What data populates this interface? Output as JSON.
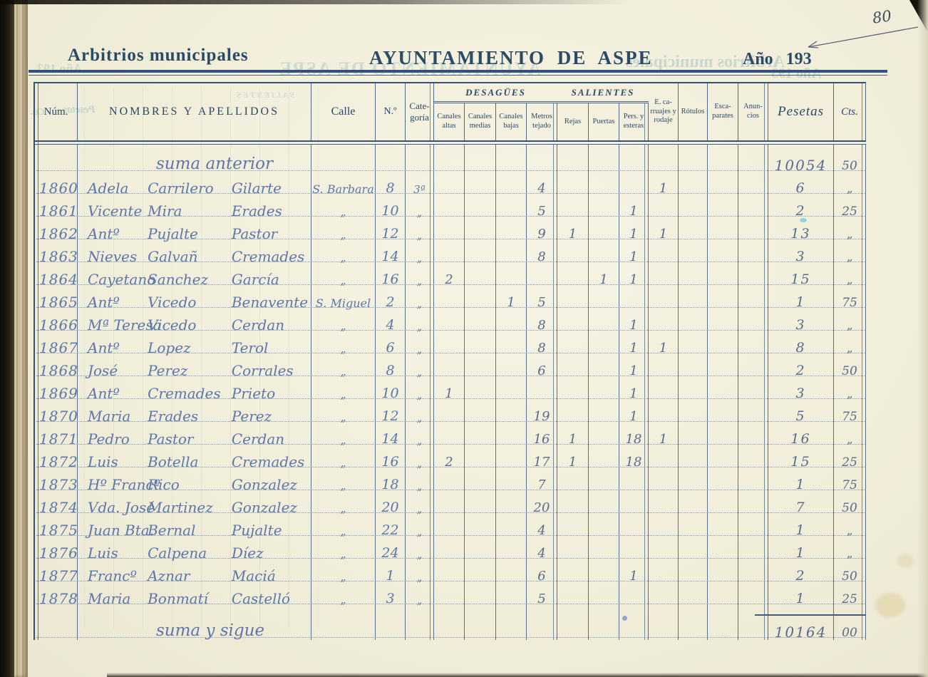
{
  "page": {
    "number": "80"
  },
  "header": {
    "left_title": "Arbitrios municipales",
    "center_title": "AYUNTAMIENTO DE ASPE",
    "year_label": "Año 193"
  },
  "table": {
    "cols": {
      "num": "Núm.",
      "names": "NOMBRES Y APELLIDOS",
      "calle": "Calle",
      "nro": "N.º",
      "cat": "Cate-goría",
      "desagues": "DESAGÜES",
      "c_altas": "Canales altas",
      "c_medias": "Canales medias",
      "c_bajas": "Canales bajas",
      "metros": "Metros tejado",
      "salientes": "SALIENTES",
      "rejas": "Rejas",
      "puertas": "Puertas",
      "pers": "Pers. y esteras",
      "ecarr": "E. ca-rruajes y rodaje",
      "rotulos": "Rótulos",
      "escaparates": "Esca-parates",
      "anuncios": "Anun-cios",
      "pesetas": "Pesetas",
      "cts": "Cts."
    },
    "rows": [
      {
        "note": "suma anterior",
        "pts": "10054",
        "cts": "50"
      },
      {
        "num": "1860",
        "n": "Adela",
        "a1": "Carrilero",
        "a2": "Gilarte",
        "calle": "S. Barbara",
        "casa": "8",
        "cat": "3ª",
        "mt": "4",
        "ec": "1",
        "pts": "6",
        "cts": "„"
      },
      {
        "num": "1861",
        "n": "Vicente",
        "a1": "Mira",
        "a2": "Erades",
        "calle": "„",
        "casa": "10",
        "cat": "„",
        "mt": "5",
        "pe": "1",
        "pts": "2",
        "cts": "25"
      },
      {
        "num": "1862",
        "n": "Antº",
        "a1": "Pujalte",
        "a2": "Pastor",
        "calle": "„",
        "casa": "12",
        "cat": "„",
        "mt": "9",
        "re": "1",
        "pe": "1",
        "ec": "1",
        "pts": "13",
        "cts": "„"
      },
      {
        "num": "1863",
        "n": "Nieves",
        "a1": "Galvañ",
        "a2": "Cremades",
        "calle": "„",
        "casa": "14",
        "cat": "„",
        "mt": "8",
        "pe": "1",
        "pts": "3",
        "cts": "„"
      },
      {
        "num": "1864",
        "n": "Cayetano",
        "a1": "Sanchez",
        "a2": "García",
        "calle": "„",
        "casa": "16",
        "cat": "„",
        "ca": "2",
        "pu": "1",
        "pe": "1",
        "pts": "15",
        "cts": "„"
      },
      {
        "num": "1865",
        "n": "Antº",
        "a1": "Vicedo",
        "a2": "Benavente",
        "calle": "S. Miguel",
        "casa": "2",
        "cat": "„",
        "cb": "1",
        "mt": "5",
        "pts": "1",
        "cts": "75"
      },
      {
        "num": "1866",
        "n": "Mª Teresa",
        "a1": "Vicedo",
        "a2": "Cerdan",
        "calle": "„",
        "casa": "4",
        "cat": "„",
        "mt": "8",
        "pe": "1",
        "pts": "3",
        "cts": "„"
      },
      {
        "num": "1867",
        "n": "Antº",
        "a1": "Lopez",
        "a2": "Terol",
        "calle": "„",
        "casa": "6",
        "cat": "„",
        "mt": "8",
        "pe": "1",
        "ec": "1",
        "pts": "8",
        "cts": "„"
      },
      {
        "num": "1868",
        "n": "José",
        "a1": "Perez",
        "a2": "Corrales",
        "calle": "„",
        "casa": "8",
        "cat": "„",
        "mt": "6",
        "pe": "1",
        "pts": "2",
        "cts": "50"
      },
      {
        "num": "1869",
        "n": "Antº",
        "a1": "Cremades",
        "a2": "Prieto",
        "calle": "„",
        "casa": "10",
        "cat": "„",
        "ca": "1",
        "pe": "1",
        "pts": "3",
        "cts": "„"
      },
      {
        "num": "1870",
        "n": "Maria",
        "a1": "Erades",
        "a2": "Perez",
        "calle": "„",
        "casa": "12",
        "cat": "„",
        "mt": "19",
        "pe": "1",
        "pts": "5",
        "cts": "75"
      },
      {
        "num": "1871",
        "n": "Pedro",
        "a1": "Pastor",
        "a2": "Cerdan",
        "calle": "„",
        "casa": "14",
        "cat": "„",
        "mt": "16",
        "re": "1",
        "pe": "18",
        "ec": "1",
        "pts": "16",
        "cts": "„"
      },
      {
        "num": "1872",
        "n": "Luis",
        "a1": "Botella",
        "a2": "Cremades",
        "calle": "„",
        "casa": "16",
        "cat": "„",
        "ca": "2",
        "mt": "17",
        "re": "1",
        "pe": "18",
        "pts": "15",
        "cts": "25"
      },
      {
        "num": "1873",
        "n": "Hº Francº",
        "a1": "Rico",
        "a2": "Gonzalez",
        "calle": "„",
        "casa": "18",
        "cat": "„",
        "mt": "7",
        "pts": "1",
        "cts": "75"
      },
      {
        "num": "1874",
        "n": "Vda. José",
        "a1": "Martinez",
        "a2": "Gonzalez",
        "calle": "„",
        "casa": "20",
        "cat": "„",
        "mt": "20",
        "pts": "7",
        "cts": "50"
      },
      {
        "num": "1875",
        "n": "Juan Bta.",
        "a1": "Bernal",
        "a2": "Pujalte",
        "calle": "„",
        "casa": "22",
        "cat": "„",
        "mt": "4",
        "pts": "1",
        "cts": "„"
      },
      {
        "num": "1876",
        "n": "Luis",
        "a1": "Calpena",
        "a2": "Díez",
        "calle": "„",
        "casa": "24",
        "cat": "„",
        "mt": "4",
        "pts": "1",
        "cts": "„"
      },
      {
        "num": "1877",
        "n": "Francº",
        "a1": "Aznar",
        "a2": "Maciá",
        "calle": "„",
        "casa": "1",
        "cat": "„",
        "mt": "6",
        "pe": "1",
        "pts": "2",
        "cts": "50"
      },
      {
        "num": "1878",
        "n": "Maria",
        "a1": "Bonmatí",
        "a2": "Castelló",
        "calle": "„",
        "casa": "3",
        "cat": "„",
        "mt": "5",
        "pts": "1",
        "cts": "25"
      },
      {
        "note": "suma y sigue",
        "pts": "10164",
        "cts": "00",
        "total": true
      }
    ]
  },
  "bleed_through": {
    "t1": "AYUNTAMIENTO DE ASPE",
    "t2": "Arbitrios municipales",
    "t3": "Año 193",
    "t4": "Año 193",
    "t5": "Pesetas",
    "t6": "Cts.",
    "t7": "SALIENTES"
  },
  "ink_colors": {
    "handwriting_blue": "#5d77ab",
    "handwriting_grey": "#5c6a8c",
    "print_blue": "#2c4866",
    "rule_blue": "#33517a"
  }
}
